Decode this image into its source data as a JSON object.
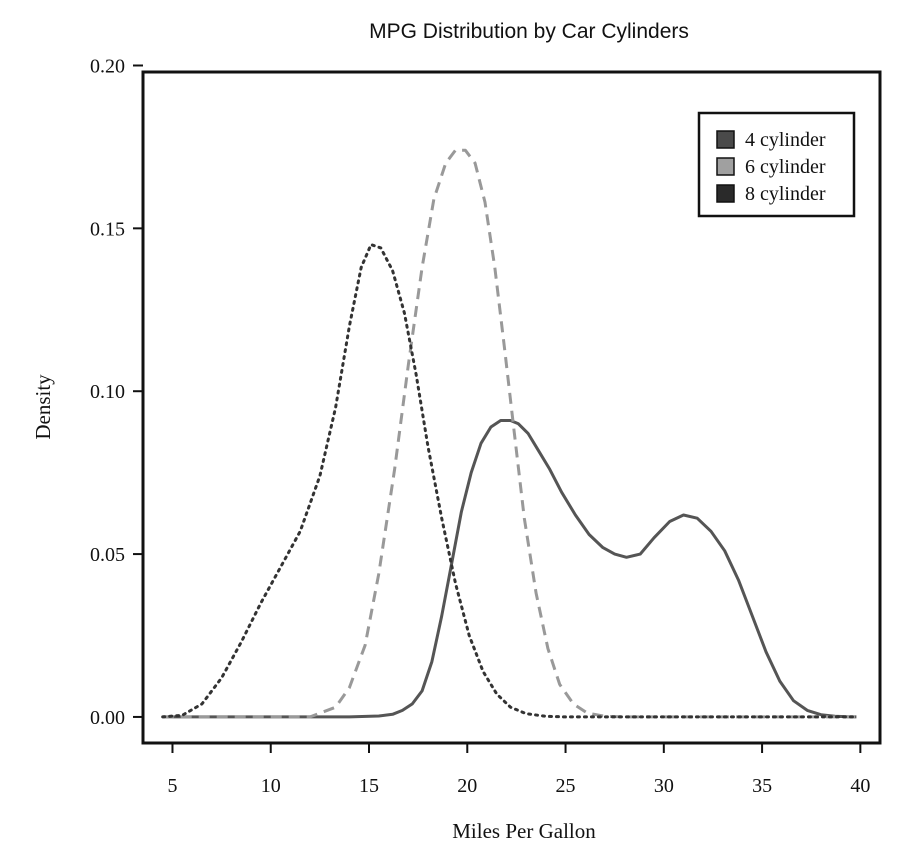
{
  "chart_data": {
    "type": "line",
    "title": "MPG Distribution by Car Cylinders",
    "xlabel": "Miles Per Gallon",
    "ylabel": "Density",
    "xlim": [
      3.5,
      41
    ],
    "ylim": [
      -0.008,
      0.198
    ],
    "x_ticks": [
      5,
      10,
      15,
      20,
      25,
      30,
      35,
      40
    ],
    "y_ticks": [
      0.0,
      0.05,
      0.1,
      0.15,
      0.2
    ],
    "x_tick_labels": [
      "5",
      "10",
      "15",
      "20",
      "25",
      "30",
      "35",
      "40"
    ],
    "y_tick_labels": [
      "0.00",
      "0.05",
      "0.10",
      "0.15",
      "0.20"
    ],
    "grid": false,
    "legend_position": "top-right",
    "series": [
      {
        "name": "4 cylinder",
        "style": "solid",
        "color": "#555555",
        "swatch_color": "#4a4a4a",
        "x": [
          4.5,
          14,
          15.5,
          16.2,
          16.7,
          17.2,
          17.7,
          18.2,
          18.7,
          19.2,
          19.7,
          20.2,
          20.7,
          21.2,
          21.7,
          22.2,
          22.6,
          23.1,
          23.6,
          24.2,
          24.8,
          25.5,
          26.2,
          26.9,
          27.5,
          28.1,
          28.8,
          29.5,
          30.3,
          31.0,
          31.7,
          32.4,
          33.1,
          33.8,
          34.5,
          35.2,
          35.9,
          36.6,
          37.3,
          38.0,
          38.7,
          39.5,
          39.8
        ],
        "y": [
          0,
          0,
          0.0003,
          0.0008,
          0.002,
          0.004,
          0.008,
          0.017,
          0.031,
          0.047,
          0.063,
          0.075,
          0.084,
          0.089,
          0.091,
          0.091,
          0.09,
          0.087,
          0.082,
          0.076,
          0.069,
          0.062,
          0.056,
          0.052,
          0.05,
          0.049,
          0.05,
          0.055,
          0.06,
          0.062,
          0.061,
          0.057,
          0.051,
          0.042,
          0.031,
          0.02,
          0.011,
          0.005,
          0.002,
          0.0007,
          0.0002,
          0,
          0
        ],
        "visual_order": 1
      },
      {
        "name": "6 cylinder",
        "style": "dashed",
        "color": "#999999",
        "swatch_color": "#a0a0a0",
        "x": [
          4.5,
          12,
          13.3,
          14.0,
          14.8,
          15.5,
          16.3,
          17.0,
          17.7,
          18.3,
          18.9,
          19.4,
          19.9,
          20.4,
          20.9,
          21.4,
          21.9,
          22.4,
          22.9,
          23.5,
          24.1,
          24.7,
          25.4,
          26.1,
          27.0,
          28,
          39.8
        ],
        "y": [
          0,
          0,
          0.003,
          0.009,
          0.022,
          0.044,
          0.076,
          0.108,
          0.138,
          0.159,
          0.17,
          0.174,
          0.174,
          0.17,
          0.158,
          0.138,
          0.113,
          0.087,
          0.061,
          0.038,
          0.021,
          0.01,
          0.004,
          0.0012,
          0.0002,
          0,
          0
        ],
        "visual_order": 2
      },
      {
        "name": "8 cylinder",
        "style": "dotted",
        "color": "#333333",
        "swatch_color": "#2a2a2a",
        "x": [
          4.5,
          5.5,
          6.5,
          7.5,
          8.5,
          9.5,
          10.5,
          11.5,
          12.5,
          13.3,
          14.0,
          14.6,
          15.1,
          15.6,
          16.2,
          16.8,
          17.4,
          18.0,
          18.7,
          19.4,
          20.1,
          20.8,
          21.5,
          22.2,
          23.0,
          24.0,
          25.0,
          26,
          39.8
        ],
        "y": [
          0,
          0.0005,
          0.004,
          0.012,
          0.023,
          0.035,
          0.046,
          0.057,
          0.074,
          0.095,
          0.12,
          0.138,
          0.145,
          0.144,
          0.137,
          0.124,
          0.105,
          0.083,
          0.061,
          0.041,
          0.025,
          0.014,
          0.007,
          0.003,
          0.001,
          0.0002,
          0,
          0,
          0
        ],
        "visual_order": 3
      }
    ]
  }
}
